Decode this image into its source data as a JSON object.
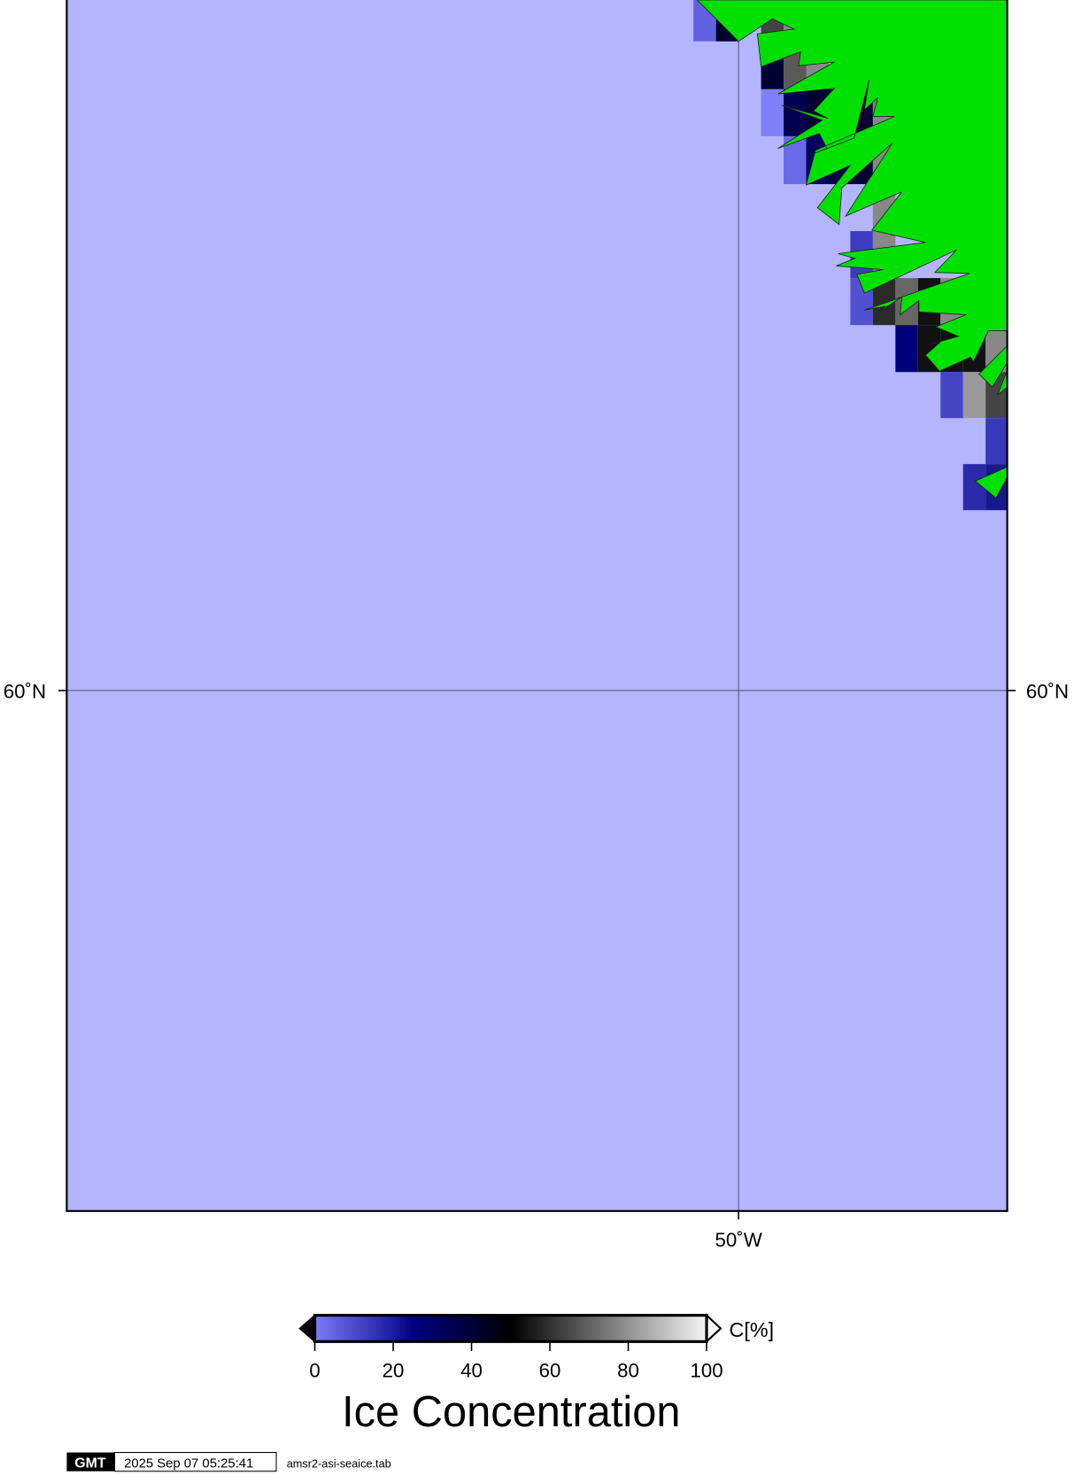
{
  "map": {
    "lat_label_left": "60˚N",
    "lat_label_right": "60˚N",
    "lon_label_bottom": "50˚W",
    "colors": {
      "ocean": "#b4b4ff",
      "land": "#00e000",
      "frame": "#000000",
      "gridline": "#444444"
    }
  },
  "chart_data": {
    "type": "heatmap",
    "title": "Ice Concentration",
    "colorbar": {
      "unit_label": "C[%]",
      "range": [
        0,
        100
      ],
      "ticks": [
        "0",
        "20",
        "40",
        "60",
        "80",
        "100"
      ],
      "stops": [
        {
          "value": 0,
          "color": "#7b7bf7"
        },
        {
          "value": 20,
          "color": "#1c1ca0"
        },
        {
          "value": 25,
          "color": "#000080"
        },
        {
          "value": 40,
          "color": "#000038"
        },
        {
          "value": 50,
          "color": "#000000"
        },
        {
          "value": 100,
          "color": "#f4f4f4"
        }
      ],
      "below_color": "#000000",
      "above_color": "#ffffff"
    }
  },
  "footer": {
    "logo_text": "GMT",
    "timestamp": "2025 Sep 07 05:25:41",
    "filename": "amsr2-asi-seaice.tab"
  }
}
